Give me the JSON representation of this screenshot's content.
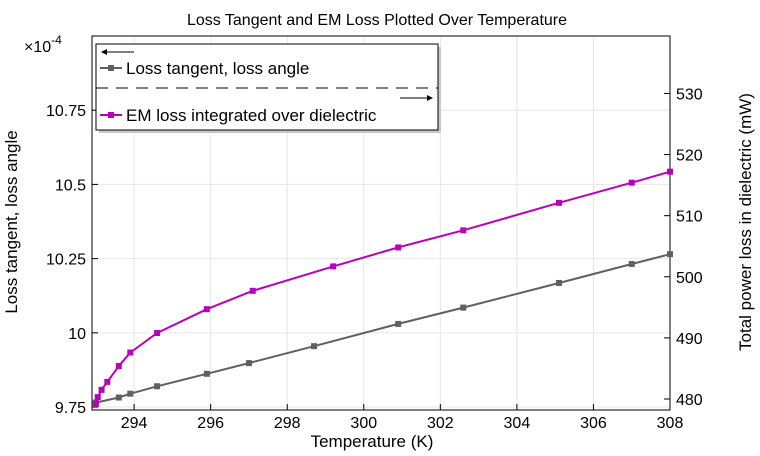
{
  "chart_data": {
    "type": "line",
    "title": "Loss Tangent and EM Loss Plotted Over Temperature",
    "xlabel": "Temperature (K)",
    "ylabel_left": "Loss tangent, loss angle",
    "ylabel_right": "Total power loss in dielectric (mW)",
    "left_multiplier": "×10",
    "left_exponent": "-4",
    "xlim": [
      292.9,
      308
    ],
    "ylim_left": [
      9.74,
      11.0
    ],
    "ylim_right": [
      478.2,
      539.4
    ],
    "x_ticks": [
      "294",
      "296",
      "298",
      "300",
      "302",
      "304",
      "306",
      "308"
    ],
    "y_ticks_left": [
      "9.75",
      "10",
      "10.25",
      "10.5",
      "10.75"
    ],
    "y_ticks_right": [
      "480",
      "490",
      "500",
      "510",
      "520",
      "530"
    ],
    "grid": true,
    "legend_position": "top-left",
    "series": [
      {
        "name": "Loss tangent, loss angle",
        "axis": "left",
        "color": "#606060",
        "x": [
          293.0,
          293.6,
          293.9,
          294.6,
          295.9,
          297.0,
          298.7,
          300.9,
          302.6,
          305.1,
          307.0,
          308.0
        ],
        "y": [
          9.765,
          9.782,
          9.795,
          9.82,
          9.862,
          9.898,
          9.955,
          10.03,
          10.085,
          10.168,
          10.232,
          10.265
        ]
      },
      {
        "name": "EM loss integrated over dielectric",
        "axis": "right",
        "color": "#bb00bb",
        "x": [
          293.0,
          293.05,
          293.15,
          293.3,
          293.6,
          293.9,
          294.6,
          295.9,
          297.1,
          299.2,
          300.9,
          302.6,
          305.1,
          307.0,
          308.0
        ],
        "y": [
          479.2,
          480.3,
          481.5,
          482.8,
          485.4,
          487.6,
          490.8,
          494.7,
          497.7,
          501.7,
          504.8,
          507.6,
          512.1,
          515.4,
          517.2
        ]
      }
    ]
  }
}
